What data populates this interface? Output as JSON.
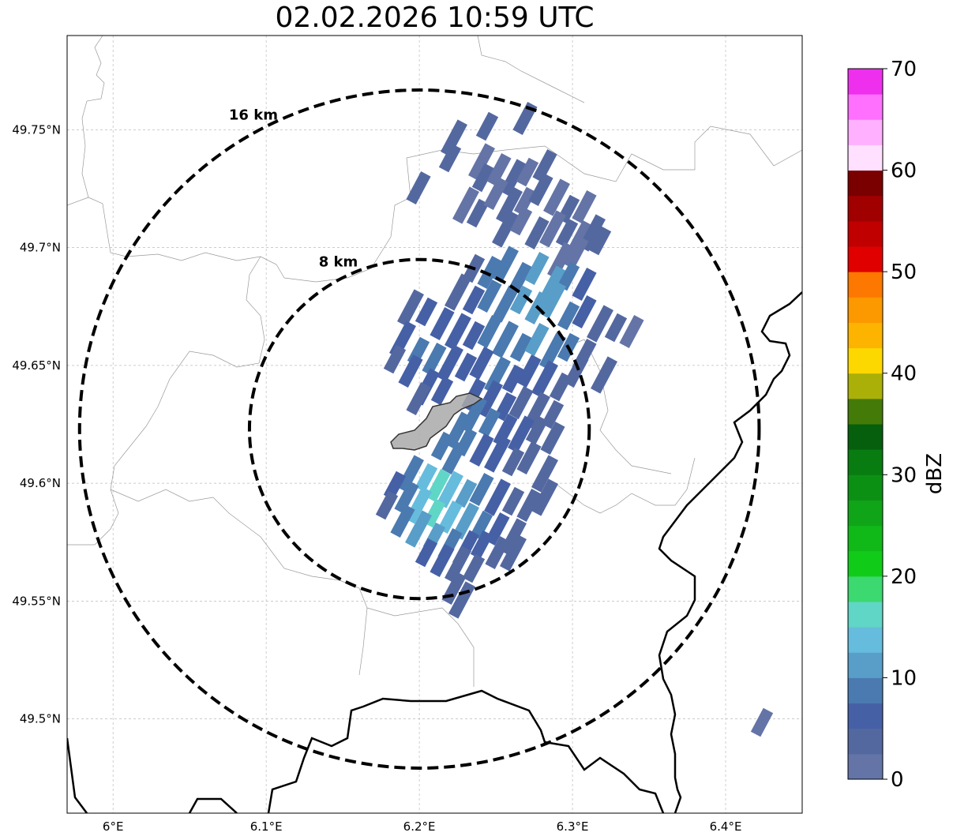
{
  "title": "02.02.2026 10:59 UTC",
  "map": {
    "extent": {
      "lon": [
        5.97,
        6.45
      ],
      "lat": [
        49.46,
        49.79
      ]
    },
    "x_ticks": [
      {
        "value": 6.0,
        "label": "6°E"
      },
      {
        "value": 6.1,
        "label": "6.1°E"
      },
      {
        "value": 6.2,
        "label": "6.2°E"
      },
      {
        "value": 6.3,
        "label": "6.3°E"
      },
      {
        "value": 6.4,
        "label": "6.4°E"
      }
    ],
    "y_ticks": [
      {
        "value": 49.5,
        "label": "49.5°N"
      },
      {
        "value": 49.55,
        "label": "49.55°N"
      },
      {
        "value": 49.6,
        "label": "49.6°N"
      },
      {
        "value": 49.65,
        "label": "49.65°N"
      },
      {
        "value": 49.7,
        "label": "49.7°N"
      },
      {
        "value": 49.75,
        "label": "49.75°N"
      }
    ],
    "grid": true,
    "radar_center": {
      "lon": 6.2,
      "lat": 49.623
    },
    "range_rings": [
      {
        "label": "8 km",
        "radius_km": 8
      },
      {
        "label": "16 km",
        "radius_km": 16
      }
    ],
    "city_color": "#a9a9a9"
  },
  "colorbar": {
    "label": "dBZ",
    "min": 0,
    "max": 70,
    "ticks": [
      "0",
      "10",
      "20",
      "30",
      "40",
      "50",
      "60",
      "70"
    ],
    "colors": [
      "#6474a6",
      "#5468a0",
      "#4660a6",
      "#4a7ab0",
      "#589ec8",
      "#66bcdc",
      "#60d6c6",
      "#3cd870",
      "#10cc18",
      "#10b818",
      "#10a418",
      "#0c9014",
      "#087c10",
      "#065f0c",
      "#447a08",
      "#aab008",
      "#fcd800",
      "#fcb400",
      "#fc9800",
      "#fc7800",
      "#e00000",
      "#c00000",
      "#a00000",
      "#7a0000",
      "#ffe0ff",
      "#ffb0ff",
      "#ff70ff",
      "#ee30ee"
    ]
  }
}
